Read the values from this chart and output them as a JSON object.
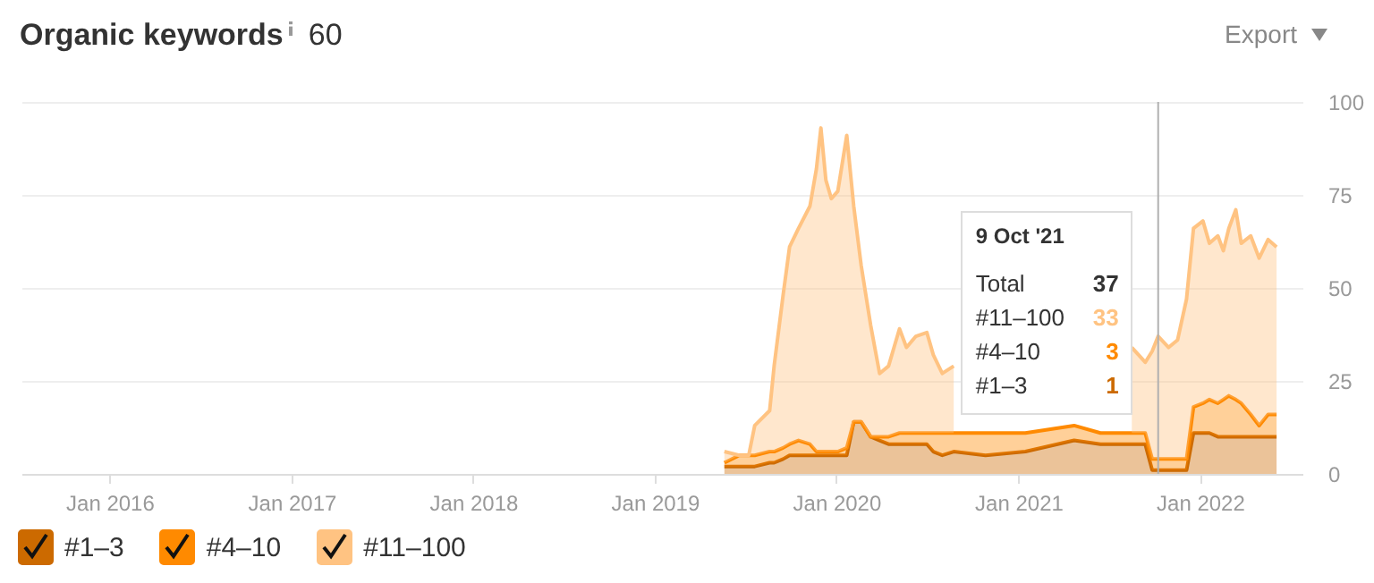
{
  "chart_data": {
    "type": "area",
    "stacked": true,
    "title": "Organic keywords",
    "annotations": [
      "60",
      "Export",
      "9 Oct '21",
      "Total",
      "37",
      "#11–100",
      "33",
      "#4–10",
      "3",
      "#1–3",
      "1"
    ],
    "x": [
      "2019-05-21",
      "2019-06-20",
      "2019-07-09",
      "2019-07-21",
      "2019-08-20",
      "2019-08-29",
      "2019-09-16",
      "2019-09-29",
      "2019-10-17",
      "2019-11-09",
      "2019-11-22",
      "2019-12-01",
      "2019-12-11",
      "2019-12-22",
      "2020-01-04",
      "2020-01-22",
      "2020-02-05",
      "2020-02-20",
      "2020-03-10",
      "2020-03-28",
      "2020-04-15",
      "2020-05-07",
      "2020-05-21",
      "2020-06-09",
      "2020-07-01",
      "2020-07-14",
      "2020-08-01",
      "2020-08-24",
      "2020-10-27",
      "2021-01-15",
      "2021-04-23",
      "2021-06-15",
      "2021-08-17",
      "2021-09-13",
      "2021-09-27",
      "2021-10-09",
      "2021-10-30",
      "2021-11-17",
      "2021-12-05",
      "2021-12-19",
      "2022-01-07",
      "2022-01-20",
      "2022-02-06",
      "2022-02-17",
      "2022-02-28",
      "2022-03-14",
      "2022-03-25",
      "2022-04-13",
      "2022-04-30",
      "2022-05-18",
      "2022-06-04"
    ],
    "series": [
      {
        "name": "#1–3",
        "color": "#cc6a00",
        "values": [
          2,
          2,
          2,
          2,
          3,
          3,
          4,
          5,
          5,
          5,
          5,
          5,
          5,
          5,
          5,
          5,
          14,
          14,
          10,
          9,
          8,
          8,
          8,
          8,
          8,
          6,
          5,
          6,
          5,
          6,
          9,
          8,
          8,
          8,
          1,
          1,
          1,
          1,
          1,
          11,
          11,
          11,
          10,
          10,
          10,
          10,
          10,
          10,
          10,
          10,
          10
        ]
      },
      {
        "name": "#4–10",
        "color": "#ff8a00",
        "values": [
          1,
          3,
          3,
          3,
          3,
          3,
          3,
          3,
          4,
          3,
          1,
          1,
          1,
          1,
          1,
          2,
          0,
          0,
          0,
          1,
          2,
          3,
          3,
          3,
          3,
          5,
          6,
          5,
          6,
          5,
          4,
          3,
          3,
          3,
          3,
          3,
          3,
          3,
          3,
          7,
          8,
          9,
          9,
          10,
          11,
          10,
          9,
          6,
          3,
          6,
          6
        ]
      },
      {
        "name": "#11–100",
        "color": "#ffc382",
        "values": [
          3,
          0,
          0,
          8,
          11,
          23,
          41,
          53,
          57,
          64,
          76,
          87,
          73,
          68,
          70,
          84,
          58,
          42,
          30,
          17,
          19,
          28,
          23,
          26,
          27,
          21,
          16,
          18,
          null,
          null,
          null,
          null,
          23,
          19,
          29,
          33,
          30,
          32,
          43,
          48,
          49,
          42,
          45,
          40,
          45,
          51,
          43,
          48,
          45,
          47,
          45
        ]
      }
    ],
    "xlim": [
      "2015-07-08",
      "2022-07-26"
    ],
    "xticks": [
      {
        "value": "2016-01-01",
        "label": "Jan 2016"
      },
      {
        "value": "2017-01-01",
        "label": "Jan 2017"
      },
      {
        "value": "2018-01-01",
        "label": "Jan 2018"
      },
      {
        "value": "2019-01-01",
        "label": "Jan 2019"
      },
      {
        "value": "2020-01-01",
        "label": "Jan 2020"
      },
      {
        "value": "2021-01-01",
        "label": "Jan 2021"
      },
      {
        "value": "2022-01-01",
        "label": "Jan 2022"
      }
    ],
    "ylim": [
      0,
      100
    ],
    "yticks": [
      0,
      25,
      50,
      75,
      100
    ],
    "ref_lines": [
      {
        "axis": "x",
        "value": "2021-10-09",
        "color": "#b0b0b0"
      }
    ],
    "grid": "y",
    "legend": "bottom"
  }
}
